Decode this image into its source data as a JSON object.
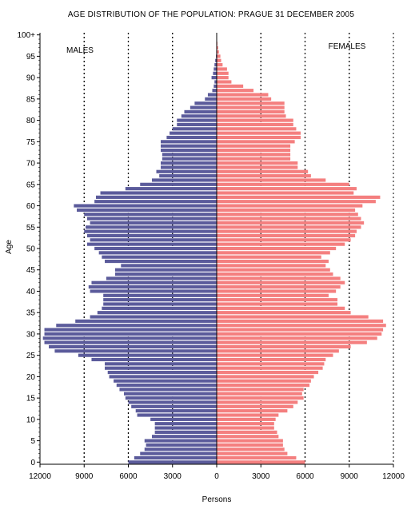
{
  "chart_data": {
    "type": "population-pyramid",
    "title": "AGE DISTRIBUTION OF THE POPULATION: PRAGUE 31 DECEMBER 2005",
    "xlabel": "Persons",
    "ylabel": "Age",
    "male_label": "MALES",
    "female_label": "FEMALES",
    "x_ticks": [
      "12000",
      "9000",
      "6000",
      "3000",
      "0",
      "3000",
      "6000",
      "9000",
      "12000"
    ],
    "xlim": [
      -12000,
      12000
    ],
    "y_ticks": [
      "0",
      "5",
      "10",
      "15",
      "20",
      "25",
      "30",
      "35",
      "40",
      "45",
      "50",
      "55",
      "60",
      "65",
      "70",
      "75",
      "80",
      "85",
      "90",
      "95",
      "100+"
    ],
    "grid": "dashed vertical lines at 3000 intervals",
    "colors": {
      "males": "#5b5b9b",
      "females": "#f47f7f"
    },
    "ages": [
      0,
      1,
      2,
      3,
      4,
      5,
      6,
      7,
      8,
      9,
      10,
      11,
      12,
      13,
      14,
      15,
      16,
      17,
      18,
      19,
      20,
      21,
      22,
      23,
      24,
      25,
      26,
      27,
      28,
      29,
      30,
      31,
      32,
      33,
      34,
      35,
      36,
      37,
      38,
      39,
      40,
      41,
      42,
      43,
      44,
      45,
      46,
      47,
      48,
      49,
      50,
      51,
      52,
      53,
      54,
      55,
      56,
      57,
      58,
      59,
      60,
      61,
      62,
      63,
      64,
      65,
      66,
      67,
      68,
      69,
      70,
      71,
      72,
      73,
      74,
      75,
      76,
      77,
      78,
      79,
      80,
      81,
      82,
      83,
      84,
      85,
      86,
      87,
      88,
      89,
      90,
      91,
      92,
      93,
      94,
      95,
      96,
      97,
      98,
      99,
      100
    ],
    "males": [
      6000,
      5600,
      5200,
      4900,
      4800,
      4900,
      4400,
      4200,
      4200,
      4200,
      4500,
      5400,
      5500,
      5800,
      6000,
      6200,
      6300,
      6600,
      6800,
      7000,
      7300,
      7400,
      7600,
      7600,
      8500,
      9400,
      11000,
      11400,
      11700,
      11800,
      11700,
      11700,
      10900,
      9600,
      8600,
      8100,
      7800,
      7700,
      7700,
      7700,
      8600,
      8700,
      8500,
      7500,
      6900,
      6900,
      6500,
      7600,
      7800,
      8000,
      8300,
      8800,
      8600,
      8800,
      9000,
      8900,
      8600,
      8800,
      9000,
      9500,
      9700,
      8300,
      8200,
      7900,
      6200,
      5200,
      4400,
      3900,
      4100,
      3800,
      3800,
      3700,
      3700,
      3800,
      3800,
      3800,
      3400,
      3200,
      3000,
      2700,
      2700,
      2400,
      2200,
      1800,
      1500,
      800,
      600,
      300,
      200,
      150,
      350,
      250,
      200,
      150,
      100,
      50,
      30,
      20,
      10,
      5,
      5
    ],
    "females": [
      6000,
      5400,
      4800,
      4600,
      4500,
      4500,
      4200,
      4100,
      3900,
      3900,
      4000,
      4200,
      4800,
      5200,
      5500,
      5900,
      5800,
      5900,
      6300,
      6400,
      6600,
      6900,
      7200,
      7300,
      7400,
      7900,
      8300,
      9100,
      10200,
      10900,
      11200,
      11300,
      11500,
      11300,
      10300,
      9100,
      8700,
      8200,
      8200,
      7600,
      8100,
      8400,
      8700,
      8400,
      7900,
      7700,
      7400,
      7600,
      7100,
      7700,
      8100,
      8700,
      9100,
      9400,
      9500,
      9800,
      10000,
      9800,
      9600,
      9400,
      9900,
      10800,
      11100,
      9300,
      9500,
      9000,
      7400,
      6400,
      6200,
      5500,
      5500,
      5000,
      5000,
      5000,
      5000,
      5300,
      5700,
      5700,
      5400,
      5200,
      5200,
      4700,
      4600,
      4600,
      4600,
      3700,
      3500,
      2500,
      1800,
      1000,
      800,
      800,
      700,
      400,
      300,
      250,
      150,
      100,
      50,
      20,
      10
    ]
  }
}
